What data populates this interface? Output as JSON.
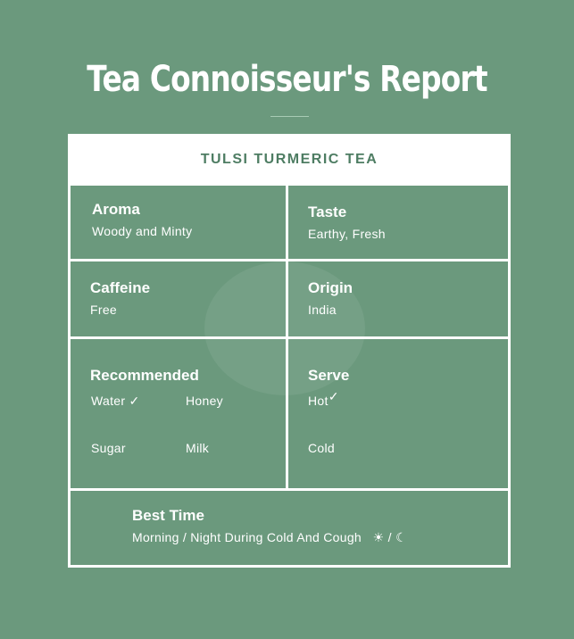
{
  "title": "Tea Connoisseur's Report",
  "tea_name": "TULSI TURMERIC TEA",
  "aroma": {
    "label": "Aroma",
    "value": "Woody and Minty"
  },
  "taste": {
    "label": "Taste",
    "value": "Earthy, Fresh"
  },
  "caffeine": {
    "label": "Caffeine",
    "value": "Free"
  },
  "origin": {
    "label": "Origin",
    "value": "India"
  },
  "recommended": {
    "label": "Recommended",
    "options": [
      "Water",
      "Honey",
      "Sugar",
      "Milk"
    ],
    "checked": [
      "Water"
    ]
  },
  "serve": {
    "label": "Serve",
    "options": [
      "Hot",
      "Cold"
    ],
    "checked": [
      "Hot"
    ]
  },
  "best_time": {
    "label": "Best Time",
    "value": "Morning / Night During Cold And Cough",
    "icons": [
      "sun-icon",
      "moon-icon"
    ],
    "separator": "/"
  },
  "colors": {
    "background": "#6b997d",
    "accent_text": "#4e7d63"
  }
}
